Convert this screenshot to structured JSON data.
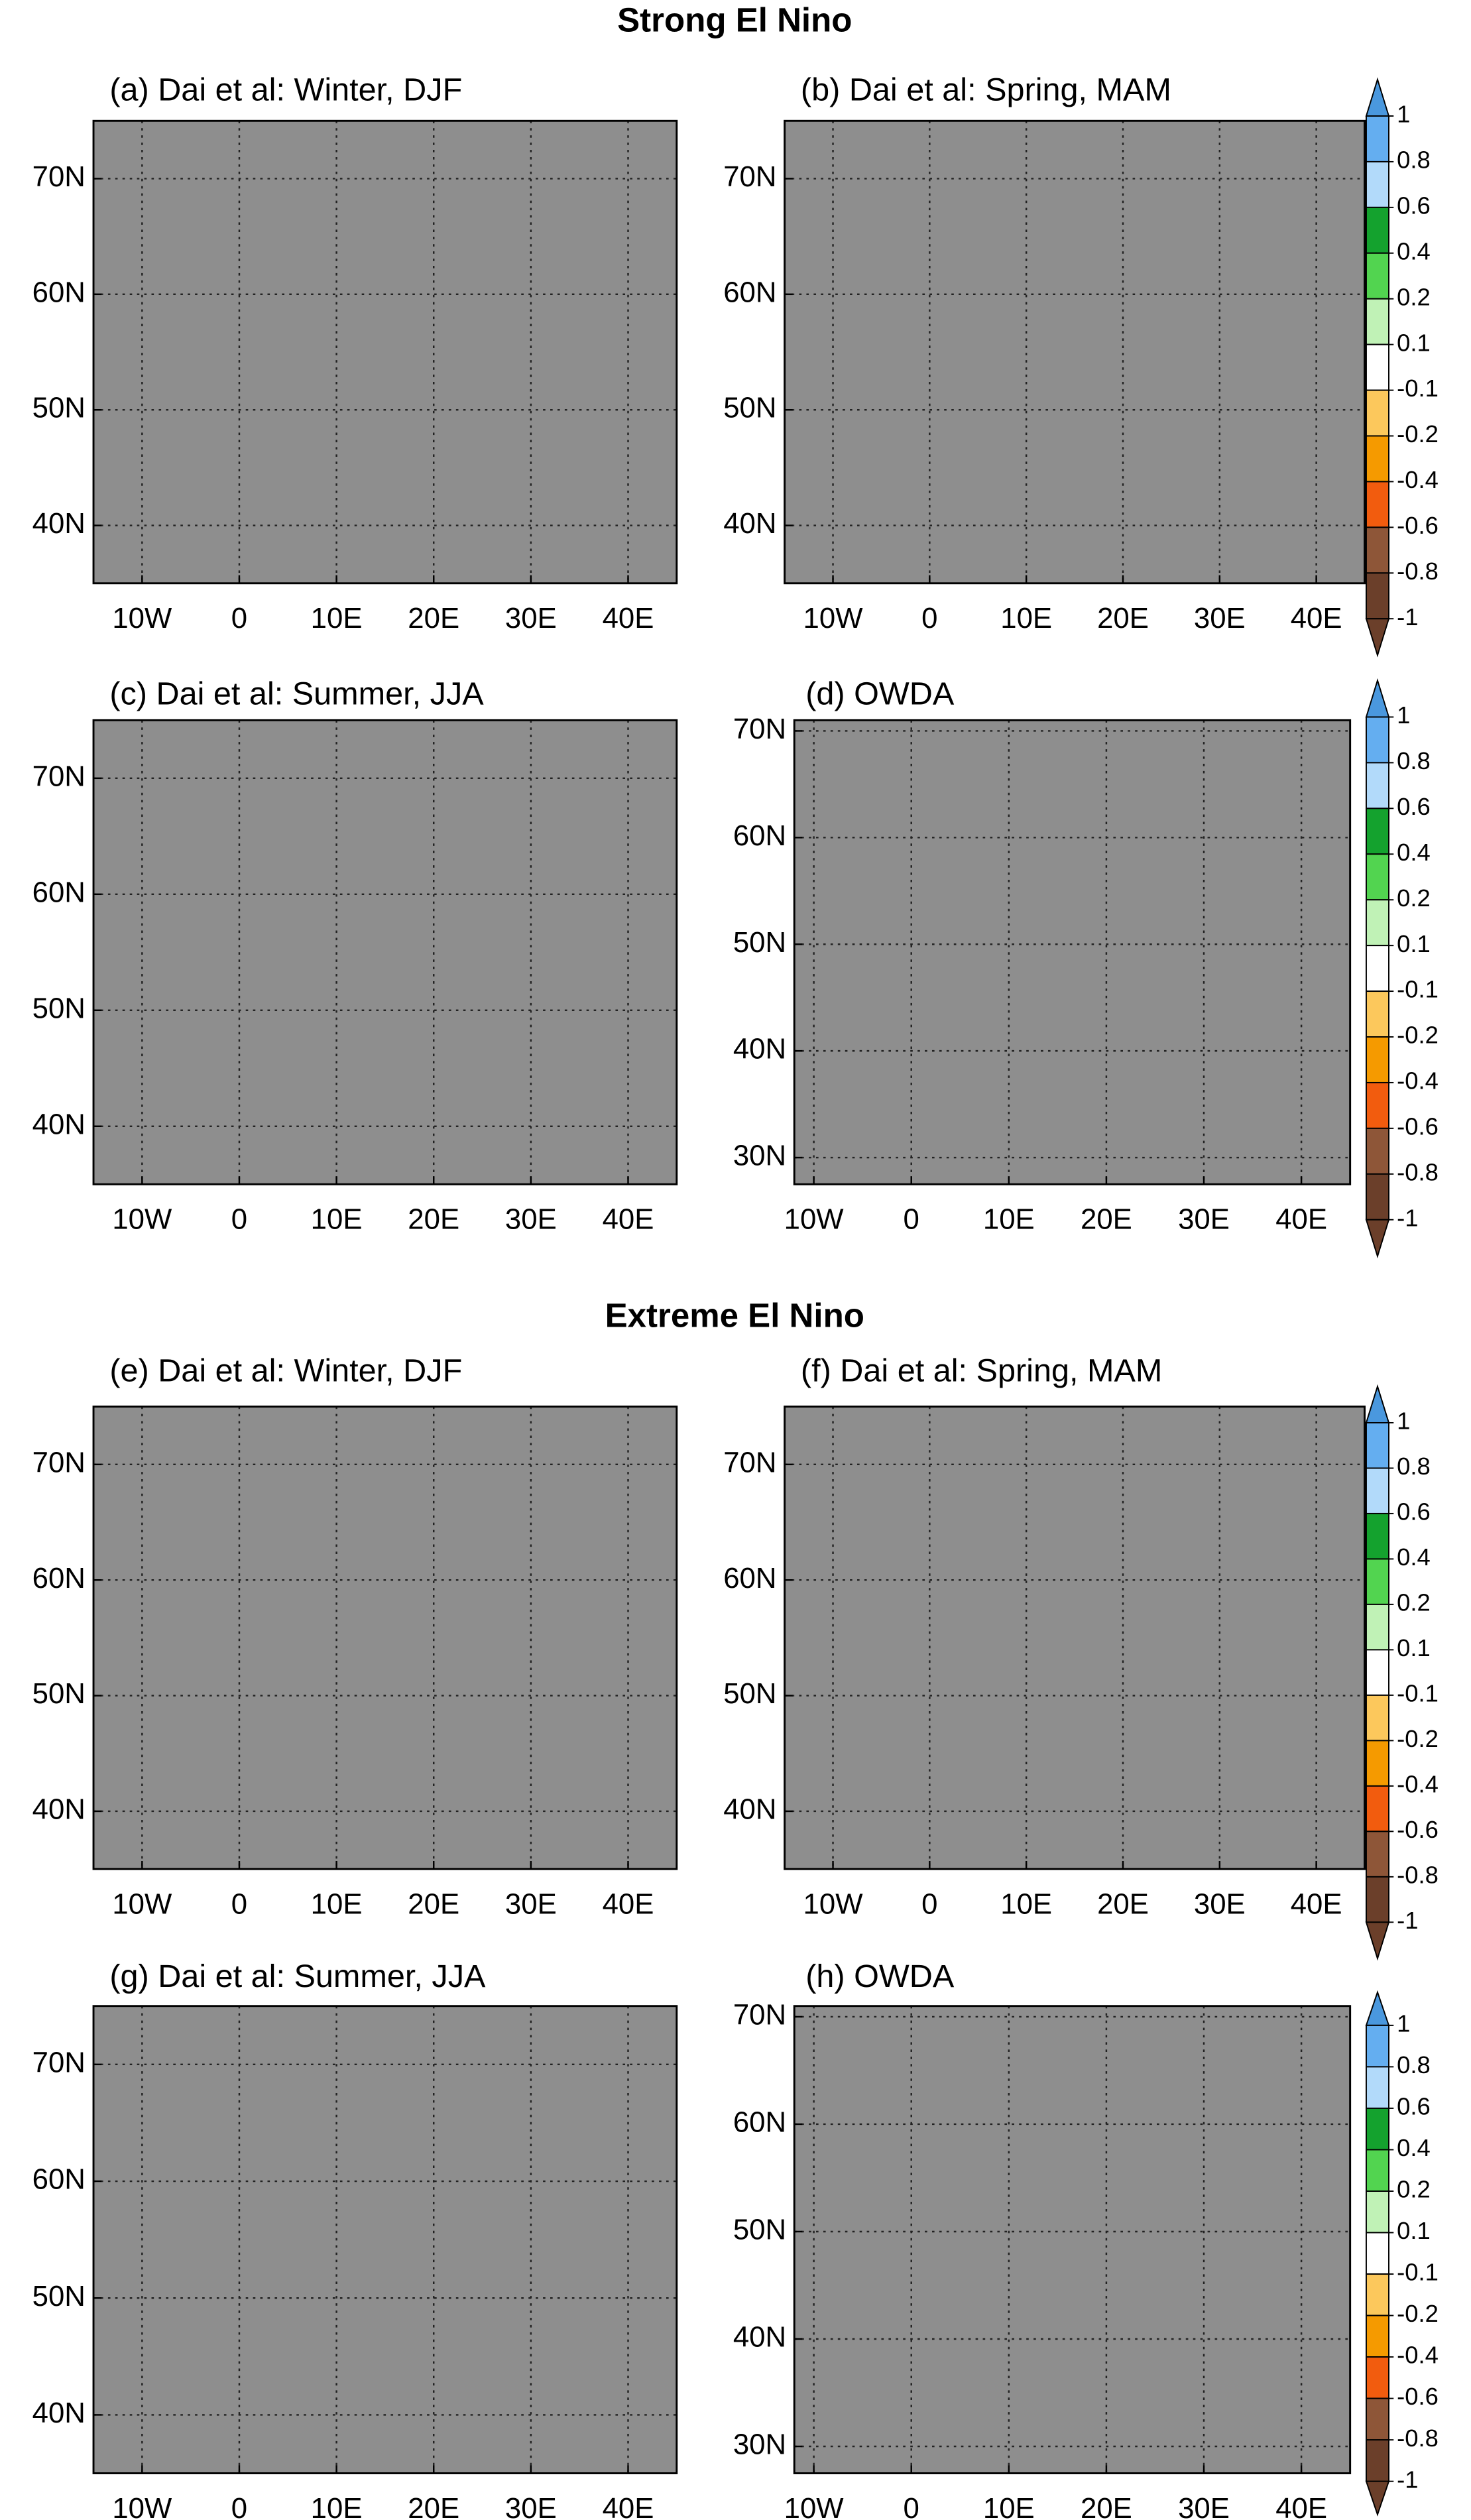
{
  "section_titles": [
    "Strong El Nino",
    "Extreme El Nino"
  ],
  "colorbar": {
    "levels": [
      1,
      0.8,
      0.6,
      0.4,
      0.2,
      0.1,
      -0.1,
      -0.2,
      -0.4,
      -0.6,
      -0.8,
      -1
    ],
    "colors": [
      "#4a98de",
      "#64aef0",
      "#b2dafa",
      "#14a22e",
      "#52d450",
      "#c0f2b6",
      "#ffffff",
      "#fcc85c",
      "#f59a00",
      "#f25c0e",
      "#8e5638",
      "#6b3f2a",
      "#6b3f2a"
    ]
  },
  "chart_data": [
    {
      "type": "map",
      "title": "(a) Dai et al: Winter, DJF",
      "color": "#8e8e8e",
      "grid": true,
      "xlim": [
        -15,
        45
      ],
      "ylim": [
        35,
        75
      ],
      "xticks": [
        {
          "value": -10,
          "label": "10W"
        },
        0,
        {
          "value": 10,
          "label": "10E"
        },
        {
          "value": 20,
          "label": "20E"
        },
        {
          "value": 30,
          "label": "30E"
        },
        {
          "value": 40,
          "label": "40E"
        }
      ],
      "yticks": [
        {
          "value": 70,
          "label": "70N"
        },
        {
          "value": 60,
          "label": "60N"
        },
        {
          "value": 50,
          "label": "50N"
        },
        {
          "value": 40,
          "label": "40N"
        }
      ]
    },
    {
      "type": "map",
      "title": "(b) Dai et al: Spring, MAM",
      "color": "#8e8e8e",
      "grid": true,
      "xlim": [
        -15,
        45
      ],
      "ylim": [
        35,
        75
      ],
      "xticks": [
        {
          "value": -10,
          "label": "10W"
        },
        0,
        {
          "value": 10,
          "label": "10E"
        },
        {
          "value": 20,
          "label": "20E"
        },
        {
          "value": 30,
          "label": "30E"
        },
        {
          "value": 40,
          "label": "40E"
        }
      ],
      "yticks": [
        {
          "value": 70,
          "label": "70N"
        },
        {
          "value": 60,
          "label": "60N"
        },
        {
          "value": 50,
          "label": "50N"
        },
        {
          "value": 40,
          "label": "40N"
        }
      ]
    },
    {
      "type": "map",
      "title": "(c) Dai et al: Summer, JJA",
      "color": "#8e8e8e",
      "grid": true,
      "xlim": [
        -15,
        45
      ],
      "ylim": [
        35,
        75
      ],
      "xticks": [
        {
          "value": -10,
          "label": "10W"
        },
        0,
        {
          "value": 10,
          "label": "10E"
        },
        {
          "value": 20,
          "label": "20E"
        },
        {
          "value": 30,
          "label": "30E"
        },
        {
          "value": 40,
          "label": "40E"
        }
      ],
      "yticks": [
        {
          "value": 70,
          "label": "70N"
        },
        {
          "value": 60,
          "label": "60N"
        },
        {
          "value": 50,
          "label": "50N"
        },
        {
          "value": 40,
          "label": "40N"
        }
      ]
    },
    {
      "type": "map",
      "title": "(d) OWDA",
      "color": "#8e8e8e",
      "grid": true,
      "xlim": [
        -12,
        45
      ],
      "ylim": [
        27.5,
        71
      ],
      "xticks": [
        {
          "value": -10,
          "label": "10W"
        },
        0,
        {
          "value": 10,
          "label": "10E"
        },
        {
          "value": 20,
          "label": "20E"
        },
        {
          "value": 30,
          "label": "30E"
        },
        {
          "value": 40,
          "label": "40E"
        }
      ],
      "yticks": [
        {
          "value": 70,
          "label": "70N"
        },
        {
          "value": 60,
          "label": "60N"
        },
        {
          "value": 50,
          "label": "50N"
        },
        {
          "value": 40,
          "label": "40N"
        },
        {
          "value": 30,
          "label": "30N"
        }
      ]
    },
    {
      "type": "map",
      "title": "(e) Dai et al: Winter, DJF",
      "color": "#8e8e8e",
      "grid": true,
      "xlim": [
        -15,
        45
      ],
      "ylim": [
        35,
        75
      ],
      "xticks": [
        {
          "value": -10,
          "label": "10W"
        },
        0,
        {
          "value": 10,
          "label": "10E"
        },
        {
          "value": 20,
          "label": "20E"
        },
        {
          "value": 30,
          "label": "30E"
        },
        {
          "value": 40,
          "label": "40E"
        }
      ],
      "yticks": [
        {
          "value": 70,
          "label": "70N"
        },
        {
          "value": 60,
          "label": "60N"
        },
        {
          "value": 50,
          "label": "50N"
        },
        {
          "value": 40,
          "label": "40N"
        }
      ]
    },
    {
      "type": "map",
      "title": "(f) Dai et al: Spring, MAM",
      "color": "#8e8e8e",
      "grid": true,
      "xlim": [
        -15,
        45
      ],
      "ylim": [
        35,
        75
      ],
      "xticks": [
        {
          "value": -10,
          "label": "10W"
        },
        0,
        {
          "value": 10,
          "label": "10E"
        },
        {
          "value": 20,
          "label": "20E"
        },
        {
          "value": 30,
          "label": "30E"
        },
        {
          "value": 40,
          "label": "40E"
        }
      ],
      "yticks": [
        {
          "value": 70,
          "label": "70N"
        },
        {
          "value": 60,
          "label": "60N"
        },
        {
          "value": 50,
          "label": "50N"
        },
        {
          "value": 40,
          "label": "40N"
        }
      ]
    },
    {
      "type": "map",
      "title": "(g) Dai et al: Summer, JJA",
      "color": "#8e8e8e",
      "grid": true,
      "xlim": [
        -15,
        45
      ],
      "ylim": [
        35,
        75
      ],
      "xticks": [
        {
          "value": -10,
          "label": "10W"
        },
        0,
        {
          "value": 10,
          "label": "10E"
        },
        {
          "value": 20,
          "label": "20E"
        },
        {
          "value": 30,
          "label": "30E"
        },
        {
          "value": 40,
          "label": "40E"
        }
      ],
      "yticks": [
        {
          "value": 70,
          "label": "70N"
        },
        {
          "value": 60,
          "label": "60N"
        },
        {
          "value": 50,
          "label": "50N"
        },
        {
          "value": 40,
          "label": "40N"
        }
      ]
    },
    {
      "type": "map",
      "title": "(h) OWDA",
      "color": "#8e8e8e",
      "grid": true,
      "xlim": [
        -12,
        45
      ],
      "ylim": [
        27.5,
        71
      ],
      "xticks": [
        {
          "value": -10,
          "label": "10W"
        },
        0,
        {
          "value": 10,
          "label": "10E"
        },
        {
          "value": 20,
          "label": "20E"
        },
        {
          "value": 30,
          "label": "30E"
        },
        {
          "value": 40,
          "label": "40E"
        }
      ],
      "yticks": [
        {
          "value": 70,
          "label": "70N"
        },
        {
          "value": 60,
          "label": "60N"
        },
        {
          "value": 50,
          "label": "50N"
        },
        {
          "value": 40,
          "label": "40N"
        },
        {
          "value": 30,
          "label": "30N"
        }
      ]
    }
  ]
}
